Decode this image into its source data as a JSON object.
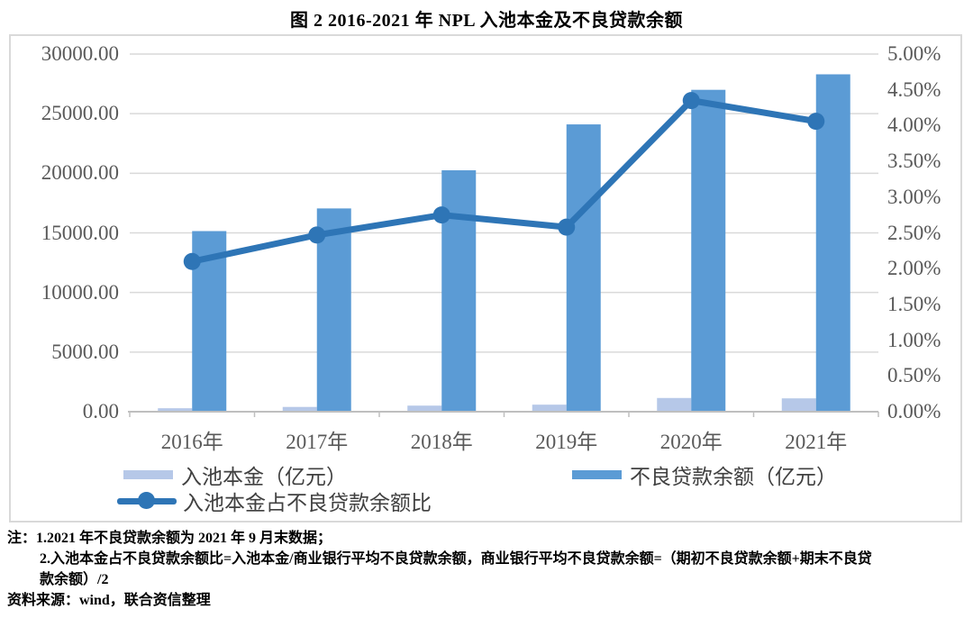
{
  "title": "图 2  2016-2021 年 NPL 入池本金及不良贷款余额",
  "chart_data": {
    "type": "bar",
    "subtype": "combo-dual-axis-bar-line",
    "categories": [
      "2016年",
      "2017年",
      "2018年",
      "2019年",
      "2020年",
      "2021年"
    ],
    "series": [
      {
        "name": "入池本金（亿元）",
        "type": "bar",
        "axis": "left",
        "color": "#b6c8e8",
        "values": [
          290,
          400,
          510,
          590,
          1150,
          1120
        ]
      },
      {
        "name": "不良贷款余额（亿元）",
        "type": "bar",
        "axis": "left",
        "color": "#5b9bd5",
        "values": [
          15150,
          17050,
          20250,
          24100,
          27000,
          28300
        ]
      },
      {
        "name": "入池本金占不良贷款余额比",
        "type": "line",
        "axis": "right",
        "color": "#2e75b6",
        "unit": "%",
        "values": [
          2.1,
          2.47,
          2.75,
          2.58,
          4.35,
          4.06
        ]
      }
    ],
    "left_axis": {
      "min": 0,
      "max": 30000,
      "step": 5000,
      "tick_labels_top_to_bottom": [
        "30000.00",
        "25000.00",
        "20000.00",
        "15000.00",
        "10000.00",
        "5000.00",
        "0.00"
      ]
    },
    "right_axis": {
      "min": 0,
      "max": 5,
      "step": 0.5,
      "tick_labels_top_to_bottom": [
        "5.00%",
        "4.50%",
        "4.00%",
        "3.50%",
        "3.00%",
        "2.50%",
        "2.00%",
        "1.50%",
        "1.00%",
        "0.50%",
        "0.00%"
      ]
    },
    "grid": true,
    "legend_position": "bottom"
  },
  "notes": [
    "注：1.2021 年不良贷款余额为 2021 年 9 月末数据；",
    "2.入池本金占不良贷款余额比=入池本金/商业银行平均不良贷款余额，商业银行平均不良贷款余额=（期初不良贷款余额+期末不良贷",
    "款余额）/2",
    "资料来源：wind，联合资信整理"
  ],
  "colors": {
    "bar_light": "#b6c8e8",
    "bar_medium": "#5b9bd5",
    "line": "#2e75b6",
    "gridline": "#d9d9d9",
    "axis_line": "#bfbfbf",
    "tick_text": "#595959",
    "frame_border": "#d9d9d9"
  }
}
